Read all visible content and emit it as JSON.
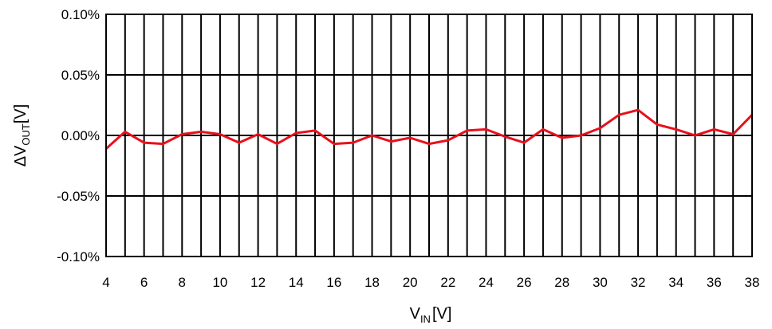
{
  "chart_data": {
    "type": "line",
    "xlabel": {
      "main": "V",
      "sub": "IN",
      "unit": "[V]"
    },
    "ylabel": {
      "prefix": "ΔV",
      "sub": "OUT",
      "unit": "[V]"
    },
    "xlim": [
      4,
      38
    ],
    "ylim": [
      -0.1,
      0.1
    ],
    "x_ticks": [
      "4",
      "6",
      "8",
      "10",
      "12",
      "14",
      "16",
      "18",
      "20",
      "22",
      "24",
      "26",
      "28",
      "30",
      "32",
      "34",
      "36",
      "38"
    ],
    "y_ticks": [
      "0.10%",
      "0.05%",
      "0.00%",
      "-0.05%",
      "-0.10%"
    ],
    "y_tick_values": [
      0.1,
      0.05,
      0.0,
      -0.05,
      -0.1
    ],
    "grid": true,
    "series": [
      {
        "color": "#e8101c",
        "x": [
          4,
          5,
          6,
          7,
          8,
          9,
          10,
          11,
          12,
          13,
          14,
          15,
          16,
          17,
          18,
          19,
          20,
          21,
          22,
          23,
          24,
          25,
          26,
          27,
          28,
          29,
          30,
          31,
          32,
          33,
          34,
          35,
          36,
          37,
          38
        ],
        "y": [
          -0.011,
          0.003,
          -0.006,
          -0.007,
          0.001,
          0.003,
          0.001,
          -0.006,
          0.001,
          -0.007,
          0.002,
          0.004,
          -0.007,
          -0.006,
          0.0,
          -0.005,
          -0.002,
          -0.007,
          -0.004,
          0.004,
          0.005,
          -0.001,
          -0.006,
          0.005,
          -0.002,
          0.0,
          0.006,
          0.017,
          0.021,
          0.009,
          0.005,
          0.0,
          0.005,
          0.001,
          0.017
        ]
      }
    ]
  }
}
